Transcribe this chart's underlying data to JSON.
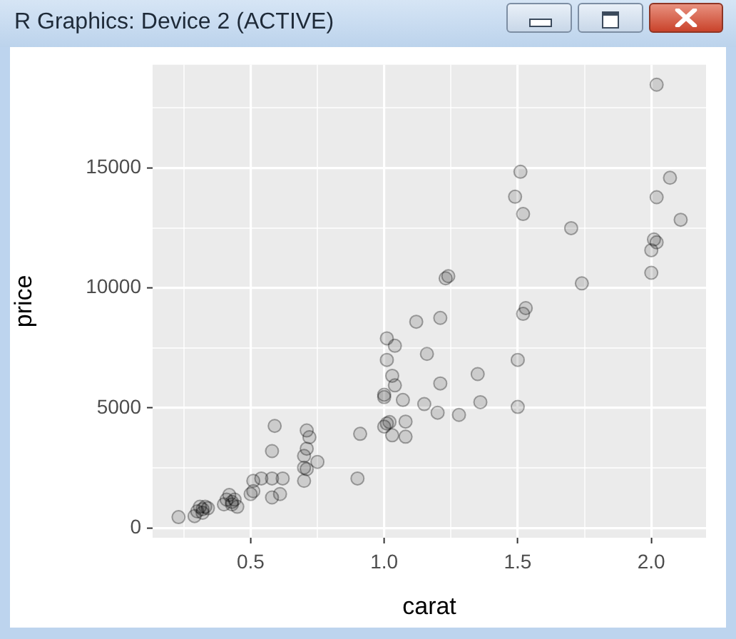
{
  "chart_data": {
    "type": "scatter",
    "title": "R Graphics: Device 2 (ACTIVE)",
    "xlabel": "carat",
    "ylabel": "price",
    "x": [
      0.23,
      0.29,
      0.3,
      0.31,
      0.32,
      0.33,
      0.34,
      0.32,
      0.4,
      0.41,
      0.42,
      0.43,
      0.43,
      0.45,
      0.44,
      0.5,
      0.51,
      0.51,
      0.54,
      0.58,
      0.62,
      0.58,
      0.61,
      0.59,
      0.58,
      0.71,
      0.72,
      0.71,
      0.7,
      0.7,
      0.71,
      0.75,
      0.7,
      0.91,
      0.9,
      1.24,
      1.23,
      1.53,
      1.52,
      1.12,
      1.21,
      1.01,
      1.04,
      1.01,
      1.16,
      1.5,
      1.03,
      1.04,
      1.21,
      1.35,
      1.0,
      1.0,
      1.07,
      1.15,
      1.36,
      1.5,
      1.2,
      1.28,
      1.08,
      1.01,
      1.0,
      1.02,
      1.03,
      1.08,
      2.02,
      1.51,
      2.07,
      1.49,
      2.02,
      1.52,
      2.11,
      1.7,
      2.01,
      2.02,
      2.0,
      2.0,
      1.74
    ],
    "values": [
      450,
      490,
      690,
      880,
      780,
      880,
      820,
      630,
      980,
      1180,
      1370,
      1080,
      980,
      880,
      1180,
      1410,
      1530,
      1960,
      2060,
      2060,
      2060,
      1270,
      1410,
      4250,
      3200,
      4060,
      3780,
      3300,
      3000,
      2510,
      2450,
      2750,
      1960,
      3920,
      2060,
      10490,
      10400,
      9160,
      8920,
      8590,
      8750,
      7900,
      7590,
      7000,
      7250,
      7000,
      6340,
      5940,
      6020,
      6410,
      5550,
      5450,
      5330,
      5160,
      5240,
      5040,
      4800,
      4710,
      4430,
      4350,
      4220,
      4410,
      3860,
      3800,
      18470,
      14840,
      14590,
      13800,
      13780,
      13080,
      12840,
      12490,
      12020,
      11900,
      11570,
      10630,
      10190
    ],
    "color": "#000000",
    "marker": "circle",
    "grid": true,
    "legend": false,
    "xlim": [
      0.133,
      2.205
    ],
    "ylim": [
      -410,
      19300
    ],
    "xticks": [
      {
        "value": 0.25,
        "label": null
      },
      {
        "value": 0.5,
        "label": "0.5"
      },
      {
        "value": 0.75,
        "label": null
      },
      {
        "value": 1,
        "label": "1.0"
      },
      {
        "value": 1.25,
        "label": null
      },
      {
        "value": 1.5,
        "label": "1.5"
      },
      {
        "value": 1.75,
        "label": null
      },
      {
        "value": 2,
        "label": "2.0"
      }
    ],
    "yticks": [
      0,
      {
        "value": 2500,
        "label": null
      },
      5000,
      {
        "value": 7500,
        "label": null
      },
      10000,
      {
        "value": 12500,
        "label": null
      },
      15000,
      {
        "value": 17500,
        "label": null
      }
    ]
  }
}
